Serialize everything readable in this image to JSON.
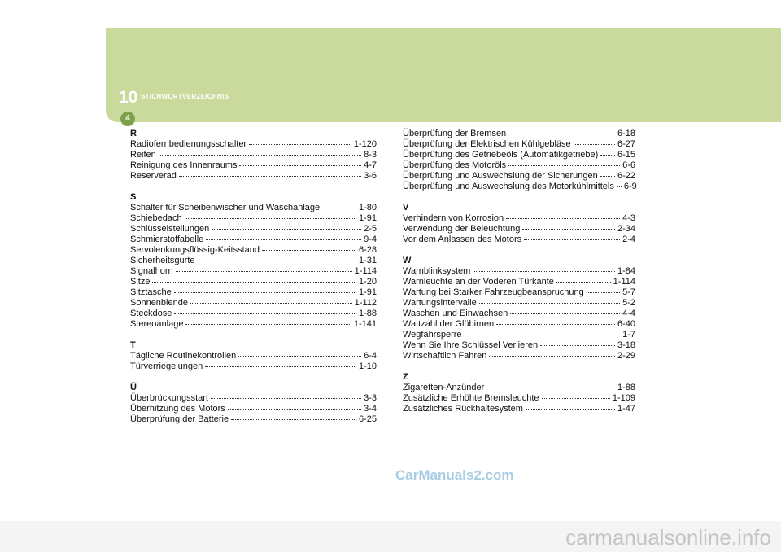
{
  "header": {
    "chapter": "10",
    "title": "STICHWORTVERZEICHNIS",
    "page": "4"
  },
  "columns": [
    {
      "sections": [
        {
          "letter": "R",
          "entries": [
            {
              "text": "Radiofernbedienungsschalter",
              "page": "1-120"
            },
            {
              "text": "Reifen",
              "page": "8-3"
            },
            {
              "text": "Reinigung des Innenraums",
              "page": "4-7"
            },
            {
              "text": "Reserverad",
              "page": "3-6"
            }
          ]
        },
        {
          "letter": "S",
          "entries": [
            {
              "text": "Schalter für Scheibenwischer und Waschanlage",
              "page": "1-80"
            },
            {
              "text": "Schiebedach",
              "page": "1-91"
            },
            {
              "text": "Schlüsselstellungen",
              "page": "2-5"
            },
            {
              "text": "Schmierstoffabelle",
              "page": "9-4"
            },
            {
              "text": "Servolenkungsflüssig-Keitsstand",
              "page": "6-28"
            },
            {
              "text": "Sicherheitsgurte",
              "page": "1-31"
            },
            {
              "text": "Signalhorn",
              "page": "1-114"
            },
            {
              "text": "Sitze",
              "page": "1-20"
            },
            {
              "text": "Sitztasche",
              "page": "1-91"
            },
            {
              "text": "Sonnenblende",
              "page": "1-112"
            },
            {
              "text": "Steckdose",
              "page": "1-88"
            },
            {
              "text": "Stereoanlage",
              "page": "1-141"
            }
          ]
        },
        {
          "letter": "T",
          "entries": [
            {
              "text": "Tägliche Routinekontrollen",
              "page": "6-4"
            },
            {
              "text": "Türverriegelungen",
              "page": "1-10"
            }
          ]
        },
        {
          "letter": "Ü",
          "entries": [
            {
              "text": "Überbrückungsstart",
              "page": "3-3"
            },
            {
              "text": "Überhitzung des Motors",
              "page": "3-4"
            },
            {
              "text": "Überprüfung der Batterie",
              "page": "6-25"
            }
          ]
        }
      ]
    },
    {
      "sections": [
        {
          "entries": [
            {
              "text": "Überprüfung der Bremsen",
              "page": "6-18"
            },
            {
              "text": "Überprüfung der Elektrischen Kühlgebläse",
              "page": "6-27"
            },
            {
              "text": "Überprüfung des Getriebeöls (Automatikgetriebe)",
              "page": "6-15"
            },
            {
              "text": "Überprüfung des Motoröls",
              "page": "6-6"
            },
            {
              "text": "Überprüfung und Auswechslung der Sicherungen",
              "page": "6-22"
            },
            {
              "text": "Überprüfung und Auswechslung des Motorkühlmittels",
              "page": "6-9"
            }
          ]
        },
        {
          "letter": "V",
          "entries": [
            {
              "text": "Verhindern von Korrosion",
              "page": "4-3"
            },
            {
              "text": "Verwendung der Beleuchtung",
              "page": "2-34"
            },
            {
              "text": "Vor dem Anlassen des Motors",
              "page": "2-4"
            }
          ]
        },
        {
          "letter": "W",
          "entries": [
            {
              "text": "Warnblinksystem",
              "page": "1-84"
            },
            {
              "text": "Warnleuchte an der Voderen Türkante",
              "page": "1-114"
            },
            {
              "text": "Wartung bei Starker Fahrzeugbeanspruchung",
              "page": "5-7"
            },
            {
              "text": "Wartungsintervalle",
              "page": "5-2"
            },
            {
              "text": "Waschen und Einwachsen",
              "page": "4-4"
            },
            {
              "text": "Wattzahl der Glübirnen",
              "page": "6-40"
            },
            {
              "text": "Wegfahrsperre",
              "page": "1-7"
            },
            {
              "text": "Wenn Sie Ihre Schlüssel Verlieren",
              "page": "3-18"
            },
            {
              "text": "Wirtschaftlich Fahren",
              "page": "2-29"
            }
          ]
        },
        {
          "letter": "Z",
          "entries": [
            {
              "text": "Zigaretten-Anzünder",
              "page": "1-88"
            },
            {
              "text": "Zusätzliche Erhöhte Bremsleuchte",
              "page": "1-109"
            },
            {
              "text": "Zusätzliches Rückhaltesystem",
              "page": "1-47"
            }
          ]
        }
      ]
    }
  ],
  "watermarks": {
    "site": "CarManuals2.com",
    "footer": "carmanualsonline.info"
  }
}
